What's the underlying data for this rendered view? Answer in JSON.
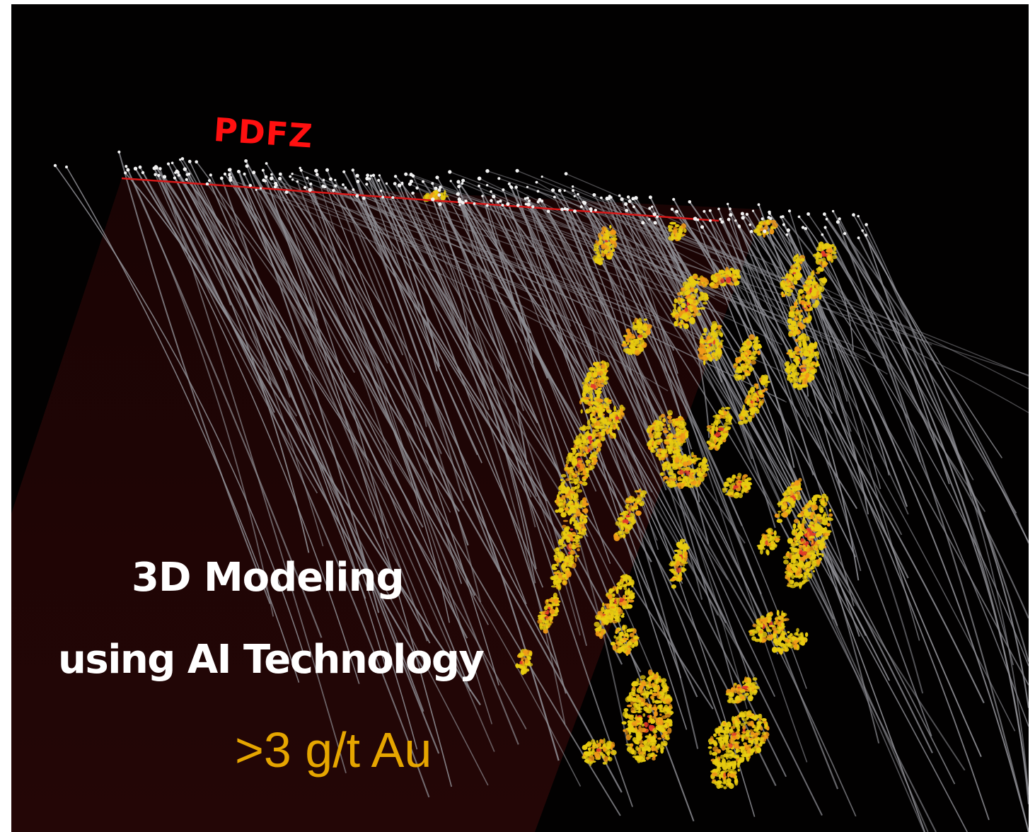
{
  "labels": {
    "fault_name": "PDFZ",
    "title_line1": "3D Modeling",
    "title_line2": "using AI Technology",
    "grade_threshold": ">3 g/t Au"
  },
  "colors": {
    "background": "#020101",
    "fault_plane": "#1e0505",
    "fault_trace": "#d81818",
    "fault_label": "#ff1010",
    "drill_trace": "#8f8f95",
    "collar": "#f2f2f2",
    "mineralization_low": "#e8cc10",
    "mineralization_mid": "#f09a18",
    "mineralization_high": "#e23a2a",
    "grade_label": "#e6a600",
    "title_text": "#ffffff"
  }
}
